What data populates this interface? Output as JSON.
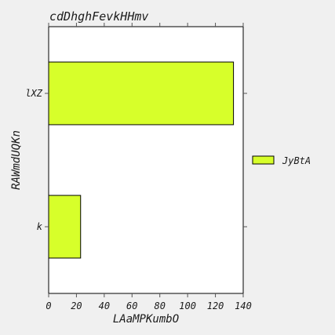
{
  "chart_data": {
    "type": "bar",
    "orientation": "horizontal",
    "title": "cdDhghFevkHHmv",
    "xlabel": "LAaMPKumbO",
    "ylabel": "RAWmdUQKn",
    "categories": [
      "k",
      "lXZ"
    ],
    "series": [
      {
        "name": "JyBtA",
        "values": [
          23,
          133
        ],
        "color": "#d7ff2a"
      }
    ],
    "xlim": [
      0,
      140
    ],
    "xticks": [
      0,
      20,
      40,
      60,
      80,
      100,
      120,
      140
    ],
    "grid": false,
    "legend_position": "right"
  }
}
